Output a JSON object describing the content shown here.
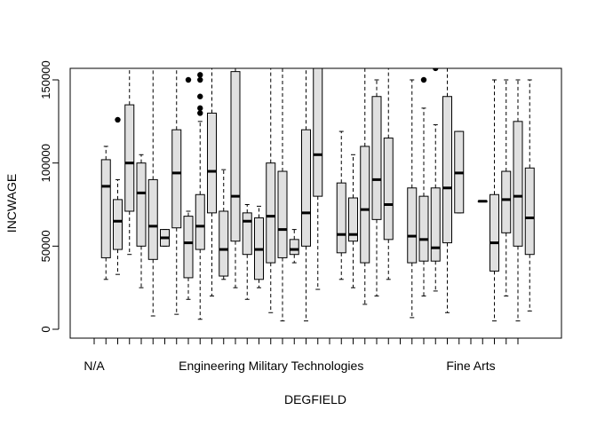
{
  "chart_data": {
    "type": "boxplot",
    "title": "",
    "xlabel": "DEGFIELD",
    "ylabel": "INCWAGE",
    "ylim": [
      0,
      157000
    ],
    "yticks": [
      0,
      50000,
      100000,
      150000
    ],
    "ytick_labels": [
      "0",
      "50000",
      "100000",
      "150000"
    ],
    "n_categories": 37,
    "xtick_labels": [
      {
        "index": 1,
        "label": "N/A"
      },
      {
        "index": 11,
        "label": "Engineering"
      },
      {
        "index": 19,
        "label": "Military Technologies"
      },
      {
        "index": 33,
        "label": "Fine Arts"
      }
    ],
    "box_fill": "#e0e0e0",
    "boxes": [
      {
        "index": 2,
        "whisker_low": 30000,
        "q1": 43000,
        "median": 86000,
        "q3": 102000,
        "whisker_high": 110000,
        "outliers": []
      },
      {
        "index": 3,
        "whisker_low": 33000,
        "q1": 48000,
        "median": 65000,
        "q3": 78000,
        "whisker_high": 90000,
        "outliers": [
          126000
        ]
      },
      {
        "index": 4,
        "whisker_low": 45000,
        "q1": 71000,
        "median": 100000,
        "q3": 135000,
        "whisker_high": 157000,
        "outliers": []
      },
      {
        "index": 5,
        "whisker_low": 25000,
        "q1": 50000,
        "median": 82000,
        "q3": 100000,
        "whisker_high": 105000,
        "outliers": []
      },
      {
        "index": 6,
        "whisker_low": 8000,
        "q1": 42000,
        "median": 62000,
        "q3": 90000,
        "whisker_high": 157000,
        "outliers": []
      },
      {
        "index": 7,
        "whisker_low": 50000,
        "q1": 50000,
        "median": 55000,
        "q3": 60000,
        "whisker_high": 60000,
        "outliers": []
      },
      {
        "index": 8,
        "whisker_low": 9000,
        "q1": 61000,
        "median": 94000,
        "q3": 120000,
        "whisker_high": 157000,
        "outliers": []
      },
      {
        "index": 9,
        "whisker_low": 18000,
        "q1": 31000,
        "median": 52000,
        "q3": 68000,
        "whisker_high": 71000,
        "outliers": [
          150000
        ]
      },
      {
        "index": 10,
        "whisker_low": 6000,
        "q1": 48000,
        "median": 62000,
        "q3": 81000,
        "whisker_high": 125000,
        "outliers": [
          130000,
          133000,
          140000,
          150000,
          153000
        ]
      },
      {
        "index": 11,
        "whisker_low": 20000,
        "q1": 70000,
        "median": 95000,
        "q3": 130000,
        "whisker_high": 157000,
        "outliers": []
      },
      {
        "index": 12,
        "whisker_low": 30000,
        "q1": 32000,
        "median": 48000,
        "q3": 71000,
        "whisker_high": 96000,
        "outliers": []
      },
      {
        "index": 13,
        "whisker_low": 25000,
        "q1": 53000,
        "median": 80000,
        "q3": 155000,
        "whisker_high": 157000,
        "outliers": []
      },
      {
        "index": 14,
        "whisker_low": 18000,
        "q1": 45000,
        "median": 65000,
        "q3": 70000,
        "whisker_high": 75000,
        "outliers": []
      },
      {
        "index": 15,
        "whisker_low": 25000,
        "q1": 30000,
        "median": 48000,
        "q3": 67000,
        "whisker_high": 74000,
        "outliers": []
      },
      {
        "index": 16,
        "whisker_low": 10000,
        "q1": 40000,
        "median": 68000,
        "q3": 100000,
        "whisker_high": 157000,
        "outliers": []
      },
      {
        "index": 17,
        "whisker_low": 5000,
        "q1": 43000,
        "median": 60000,
        "q3": 95000,
        "whisker_high": 157000,
        "outliers": []
      },
      {
        "index": 18,
        "whisker_low": 40000,
        "q1": 45000,
        "median": 48000,
        "q3": 54000,
        "whisker_high": 60000,
        "outliers": []
      },
      {
        "index": 19,
        "whisker_low": 5000,
        "q1": 50000,
        "median": 70000,
        "q3": 120000,
        "whisker_high": 157000,
        "outliers": []
      },
      {
        "index": 20,
        "whisker_low": 24000,
        "q1": 80000,
        "median": 105000,
        "q3": 157000,
        "whisker_high": 157000,
        "outliers": []
      },
      {
        "index": 22,
        "whisker_low": 30000,
        "q1": 46000,
        "median": 57000,
        "q3": 88000,
        "whisker_high": 119000,
        "outliers": []
      },
      {
        "index": 23,
        "whisker_low": 25000,
        "q1": 53000,
        "median": 57000,
        "q3": 79000,
        "whisker_high": 105000,
        "outliers": []
      },
      {
        "index": 24,
        "whisker_low": 15000,
        "q1": 40000,
        "median": 72000,
        "q3": 110000,
        "whisker_high": 157000,
        "outliers": []
      },
      {
        "index": 25,
        "whisker_low": 20000,
        "q1": 66000,
        "median": 90000,
        "q3": 140000,
        "whisker_high": 150000,
        "outliers": []
      },
      {
        "index": 26,
        "whisker_low": 30000,
        "q1": 54000,
        "median": 75000,
        "q3": 115000,
        "whisker_high": 157000,
        "outliers": []
      },
      {
        "index": 28,
        "whisker_low": 7000,
        "q1": 40000,
        "median": 56000,
        "q3": 85000,
        "whisker_high": 150000,
        "outliers": []
      },
      {
        "index": 29,
        "whisker_low": 20000,
        "q1": 41000,
        "median": 54000,
        "q3": 80000,
        "whisker_high": 133000,
        "outliers": [
          150000
        ]
      },
      {
        "index": 30,
        "whisker_low": 23000,
        "q1": 41000,
        "median": 49000,
        "q3": 85000,
        "whisker_high": 123000,
        "outliers": [
          157000
        ]
      },
      {
        "index": 31,
        "whisker_low": 10000,
        "q1": 52000,
        "median": 85000,
        "q3": 140000,
        "whisker_high": 157000,
        "outliers": []
      },
      {
        "index": 32,
        "whisker_low": 70000,
        "q1": 70000,
        "median": 94000,
        "q3": 119000,
        "whisker_high": 119000,
        "outliers": []
      },
      {
        "index": 34,
        "whisker_low": 77000,
        "q1": 77000,
        "median": 77000,
        "q3": 77000,
        "whisker_high": 77000,
        "outliers": []
      },
      {
        "index": 35,
        "whisker_low": 5000,
        "q1": 35000,
        "median": 52000,
        "q3": 81000,
        "whisker_high": 150000,
        "outliers": []
      },
      {
        "index": 36,
        "whisker_low": 20000,
        "q1": 58000,
        "median": 78000,
        "q3": 95000,
        "whisker_high": 150000,
        "outliers": []
      },
      {
        "index": 37,
        "whisker_low": 5000,
        "q1": 50000,
        "median": 80000,
        "q3": 125000,
        "whisker_high": 150000,
        "outliers": []
      },
      {
        "index": 38,
        "whisker_low": 11000,
        "q1": 45000,
        "median": 67000,
        "q3": 97000,
        "whisker_high": 150000,
        "outliers": []
      }
    ]
  }
}
